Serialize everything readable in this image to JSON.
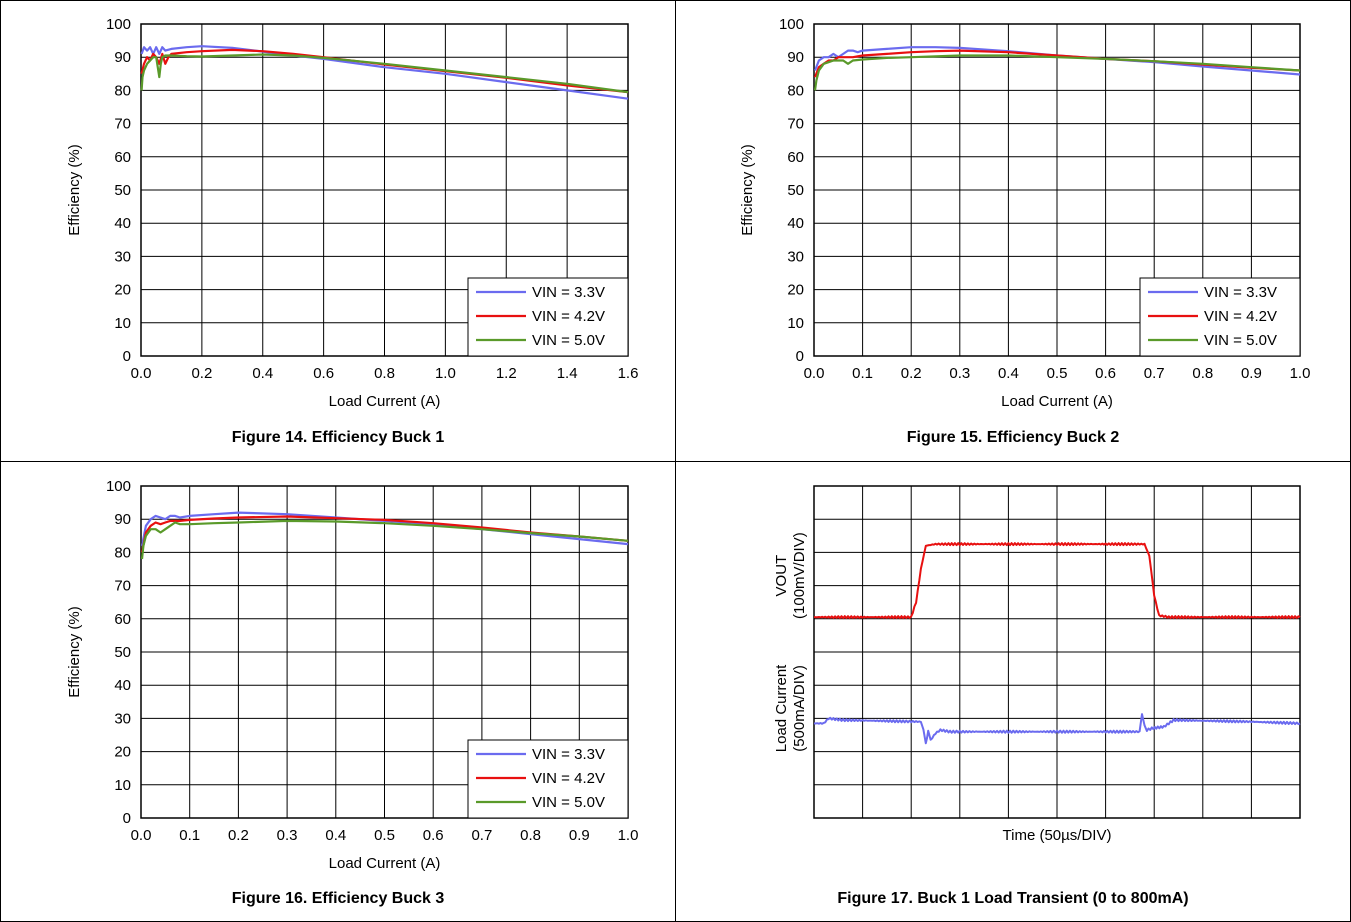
{
  "figures": {
    "fig14": {
      "caption": "Figure 14. Efficiency Buck 1"
    },
    "fig15": {
      "caption": "Figure 15. Efficiency Buck 2"
    },
    "fig16": {
      "caption": "Figure 16. Efficiency Buck 3"
    },
    "fig17": {
      "caption": "Figure 17. Buck 1 Load Transient (0 to 800mA)"
    }
  },
  "chart_data": [
    {
      "id": "fig14",
      "type": "line",
      "xlabel": "Load Current (A)",
      "ylabel": "Efficiency (%)",
      "xlim": [
        0,
        1.6
      ],
      "ylim": [
        0,
        100
      ],
      "xticks": [
        "0.0",
        "0.2",
        "0.4",
        "0.6",
        "0.8",
        "1.0",
        "1.2",
        "1.4",
        "1.6"
      ],
      "yticks": [
        "0",
        "10",
        "20",
        "30",
        "40",
        "50",
        "60",
        "70",
        "80",
        "90",
        "100"
      ],
      "grid": true,
      "legend_position": "bottom-right",
      "series": [
        {
          "name": "VIN = 3.3V",
          "color": "#6b6bef",
          "x": [
            0.002,
            0.01,
            0.02,
            0.03,
            0.04,
            0.05,
            0.06,
            0.07,
            0.08,
            0.1,
            0.15,
            0.2,
            0.3,
            0.4,
            0.5,
            0.6,
            0.8,
            1.0,
            1.2,
            1.4,
            1.6
          ],
          "y": [
            91,
            93,
            92,
            93,
            91,
            93,
            91,
            93,
            92,
            92.5,
            93,
            93.3,
            92.8,
            91.7,
            90.5,
            89.5,
            87,
            85,
            82.5,
            80,
            77.5
          ]
        },
        {
          "name": "VIN = 4.2V",
          "color": "#e81010",
          "x": [
            0.002,
            0.01,
            0.02,
            0.03,
            0.04,
            0.05,
            0.06,
            0.07,
            0.08,
            0.09,
            0.1,
            0.15,
            0.2,
            0.3,
            0.4,
            0.5,
            0.6,
            0.8,
            1.0,
            1.2,
            1.4,
            1.6
          ],
          "y": [
            85,
            88,
            90,
            89,
            91,
            90,
            88,
            91,
            88,
            90,
            91,
            91.5,
            91.8,
            92.2,
            91.8,
            91,
            90,
            87.8,
            85.8,
            83.8,
            81.5,
            79.5
          ]
        },
        {
          "name": "VIN = 5.0V",
          "color": "#5a9a2a",
          "x": [
            0.002,
            0.005,
            0.01,
            0.02,
            0.03,
            0.04,
            0.05,
            0.06,
            0.065,
            0.07,
            0.08,
            0.1,
            0.15,
            0.2,
            0.3,
            0.4,
            0.5,
            0.6,
            0.8,
            1.0,
            1.2,
            1.4,
            1.6
          ],
          "y": [
            80,
            84,
            86,
            88,
            89,
            90,
            90,
            84,
            88,
            90,
            90.5,
            90.5,
            90.3,
            90.2,
            90.5,
            90.8,
            90.5,
            89.8,
            88,
            86,
            84,
            82,
            79.5
          ]
        }
      ]
    },
    {
      "id": "fig15",
      "type": "line",
      "xlabel": "Load Current (A)",
      "ylabel": "Efficiency (%)",
      "xlim": [
        0,
        1.0
      ],
      "ylim": [
        0,
        100
      ],
      "xticks": [
        "0.0",
        "0.1",
        "0.2",
        "0.3",
        "0.4",
        "0.5",
        "0.6",
        "0.7",
        "0.8",
        "0.9",
        "1.0"
      ],
      "yticks": [
        "0",
        "10",
        "20",
        "30",
        "40",
        "50",
        "60",
        "70",
        "80",
        "90",
        "100"
      ],
      "grid": true,
      "legend_position": "bottom-right",
      "series": [
        {
          "name": "VIN = 3.3V",
          "color": "#6b6bef",
          "x": [
            0.002,
            0.01,
            0.02,
            0.03,
            0.04,
            0.05,
            0.06,
            0.07,
            0.08,
            0.09,
            0.1,
            0.15,
            0.2,
            0.25,
            0.3,
            0.4,
            0.5,
            0.6,
            0.7,
            0.8,
            0.9,
            1.0
          ],
          "y": [
            86,
            89,
            90,
            90,
            91,
            90,
            91,
            92,
            92,
            91.5,
            92,
            92.5,
            93,
            93,
            92.8,
            91.8,
            90.5,
            89.5,
            88.5,
            87.2,
            86,
            84.8
          ]
        },
        {
          "name": "VIN = 4.2V",
          "color": "#e81010",
          "x": [
            0.002,
            0.01,
            0.02,
            0.03,
            0.04,
            0.05,
            0.06,
            0.08,
            0.1,
            0.15,
            0.2,
            0.25,
            0.3,
            0.4,
            0.5,
            0.6,
            0.7,
            0.8,
            0.9,
            1.0
          ],
          "y": [
            84,
            87,
            88,
            89,
            89,
            90,
            90,
            90,
            90.5,
            91,
            91.5,
            91.8,
            92,
            91.5,
            90.5,
            89.5,
            88.8,
            87.8,
            86.8,
            86
          ]
        },
        {
          "name": "VIN = 5.0V",
          "color": "#5a9a2a",
          "x": [
            0.002,
            0.005,
            0.01,
            0.02,
            0.03,
            0.04,
            0.05,
            0.06,
            0.07,
            0.08,
            0.1,
            0.15,
            0.2,
            0.3,
            0.4,
            0.5,
            0.6,
            0.7,
            0.8,
            0.9,
            1.0
          ],
          "y": [
            80,
            83,
            86,
            88,
            88.5,
            89,
            89,
            89,
            88,
            89,
            89.3,
            89.8,
            90,
            90.5,
            90.5,
            90,
            89.5,
            88.8,
            88,
            87,
            86
          ]
        }
      ]
    },
    {
      "id": "fig16",
      "type": "line",
      "xlabel": "Load Current (A)",
      "ylabel": "Efficiency (%)",
      "xlim": [
        0,
        1.0
      ],
      "ylim": [
        0,
        100
      ],
      "xticks": [
        "0.0",
        "0.1",
        "0.2",
        "0.3",
        "0.4",
        "0.5",
        "0.6",
        "0.7",
        "0.8",
        "0.9",
        "1.0"
      ],
      "yticks": [
        "0",
        "10",
        "20",
        "30",
        "40",
        "50",
        "60",
        "70",
        "80",
        "90",
        "100"
      ],
      "grid": true,
      "legend_position": "bottom-right",
      "series": [
        {
          "name": "VIN = 3.3V",
          "color": "#6b6bef",
          "x": [
            0.002,
            0.01,
            0.02,
            0.03,
            0.04,
            0.05,
            0.06,
            0.07,
            0.08,
            0.1,
            0.15,
            0.2,
            0.3,
            0.4,
            0.5,
            0.6,
            0.7,
            0.8,
            0.9,
            1.0
          ],
          "y": [
            82,
            88,
            90,
            91,
            90.5,
            90,
            91,
            91,
            90.5,
            91,
            91.5,
            92,
            91.5,
            90.5,
            89.5,
            88.5,
            87,
            85.5,
            84,
            82.5
          ]
        },
        {
          "name": "VIN = 4.2V",
          "color": "#e81010",
          "x": [
            0.002,
            0.01,
            0.02,
            0.03,
            0.04,
            0.05,
            0.06,
            0.08,
            0.1,
            0.15,
            0.2,
            0.3,
            0.4,
            0.5,
            0.6,
            0.7,
            0.8,
            0.9,
            1.0
          ],
          "y": [
            80,
            86,
            88,
            89,
            88.5,
            89,
            89.5,
            89.5,
            89.8,
            90.2,
            90.5,
            90.8,
            90.3,
            89.8,
            88.8,
            87.5,
            86,
            84.8,
            83.5
          ]
        },
        {
          "name": "VIN = 5.0V",
          "color": "#5a9a2a",
          "x": [
            0.002,
            0.005,
            0.01,
            0.02,
            0.03,
            0.04,
            0.05,
            0.06,
            0.07,
            0.08,
            0.1,
            0.15,
            0.2,
            0.3,
            0.4,
            0.5,
            0.6,
            0.7,
            0.8,
            0.9,
            1.0
          ],
          "y": [
            78,
            82,
            85,
            87,
            87,
            86,
            87,
            88,
            89,
            88.5,
            88.5,
            88.8,
            89,
            89.5,
            89.3,
            88.8,
            88,
            87,
            85.8,
            84.8,
            83.5
          ]
        }
      ]
    },
    {
      "id": "fig17",
      "type": "line",
      "xlabel": "Time (50µs/DIV)",
      "ylabel_top_line1": "VOUT",
      "ylabel_top_line2": "(100mV/DIV)",
      "ylabel_bottom_line1": "Load Current",
      "ylabel_bottom_line2": "(500mA/DIV)",
      "divisions": {
        "x": 10,
        "y": 10
      },
      "grid": true,
      "series": [
        {
          "name": "VOUT",
          "color": "#6b6bef",
          "x": [
            0,
            0.2,
            0.3,
            0.6,
            2.2,
            2.25,
            2.3,
            2.35,
            2.4,
            2.5,
            2.6,
            2.8,
            3.0,
            6.7,
            6.75,
            6.8,
            6.85,
            6.95,
            7.2,
            7.4,
            9.0,
            10.0
          ],
          "y": [
            2.85,
            2.85,
            3.0,
            2.95,
            2.9,
            2.7,
            2.25,
            2.6,
            2.35,
            2.55,
            2.65,
            2.6,
            2.6,
            2.6,
            3.1,
            2.8,
            2.65,
            2.7,
            2.75,
            2.95,
            2.9,
            2.85
          ]
        },
        {
          "name": "Load Current",
          "color": "#e81010",
          "x": [
            0,
            2.0,
            2.1,
            2.2,
            2.3,
            2.5,
            6.8,
            6.9,
            7.0,
            7.1,
            7.3,
            10.0
          ],
          "y": [
            6.05,
            6.05,
            6.5,
            7.5,
            8.2,
            8.25,
            8.25,
            7.9,
            6.7,
            6.1,
            6.05,
            6.05
          ]
        }
      ]
    }
  ]
}
